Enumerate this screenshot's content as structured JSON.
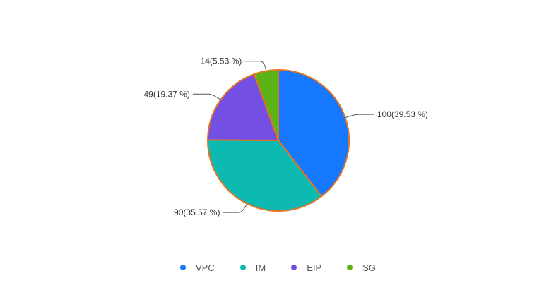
{
  "chart_data": {
    "type": "pie",
    "labels": [
      "VPC",
      "IM",
      "EIP",
      "SG"
    ],
    "values": [
      100,
      90,
      49,
      14
    ],
    "percents": [
      "39.53",
      "35.57",
      "19.37",
      "5.53"
    ],
    "slice_labels": [
      "100(39.53 %)",
      "90(35.57 %)",
      "49(19.37 %)",
      "14(5.53 %)"
    ],
    "colors": [
      "#1677ff",
      "#0dbab2",
      "#7350e3",
      "#5bb316"
    ],
    "legend_position": "bottom"
  }
}
